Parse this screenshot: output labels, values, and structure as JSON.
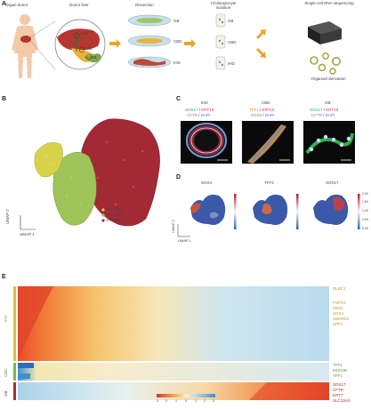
{
  "panels": {
    "a": "A",
    "b": "B",
    "c": "C",
    "d": "D",
    "e": "E"
  },
  "panel_a": {
    "organ_donor": "Organ donor",
    "donor_liver": "Donor liver",
    "dissection": "Dissection",
    "cholangiocyte_isolation": "Cholangiocyte isolation",
    "single_cell": "Single cell RNA sequencing",
    "organoid_derivation": "Organoid derivation",
    "region_ihd": "IHD",
    "region_chd": "CHD",
    "region_gb": "GB",
    "dish_labels": [
      "GB",
      "CBD",
      "IHD"
    ],
    "tube_labels": [
      "GB",
      "CBD",
      "IHD"
    ]
  },
  "panel_b": {
    "xlabel": "UMAP 1",
    "ylabel": "UMAP 2",
    "legend": [
      {
        "label": "PNI IHD",
        "color": "#d8d24a"
      },
      {
        "label": "PNI CBD",
        "color": "#9fc45a"
      },
      {
        "label": "PNI GB",
        "color": "#a32a35"
      }
    ]
  },
  "panel_c": {
    "titles": [
      "IHD",
      "CBD",
      "GB"
    ],
    "markers": [
      {
        "line1a": "SOX17",
        "line1b": "KRT19",
        "line2a": "CFTR",
        "line2b": "DAPI"
      },
      {
        "line1a": "TFF2",
        "line1b": "KRT19",
        "line2a": "SOX9",
        "line2b": "DAPI"
      },
      {
        "line1a": "SOX17",
        "line1b": "KRT19",
        "line2a": "CFTR",
        "line2b": "DAPI"
      }
    ]
  },
  "panel_d": {
    "titles": [
      "SOX4",
      "TFF2",
      "SOX17"
    ],
    "xlabel": "UMAP 1",
    "ylabel": "UMAP 2",
    "scale": [
      "2.00",
      "1.50",
      "1.00",
      "0.50",
      "0.00"
    ]
  },
  "panel_e": {
    "group_labels": [
      "IHD",
      "CBD",
      "GB"
    ],
    "group_colors": [
      "#d8c23a",
      "#7ab84a",
      "#b02a38"
    ],
    "genes_ihd": [
      "DLEC1",
      "FGFR1",
      "HES1",
      "SOX4",
      "ANKRD1",
      "SPP1"
    ],
    "genes_cbd": [
      "TFF2",
      "MUC5B",
      "TFF1"
    ],
    "genes_gb": [
      "SOX17",
      "CFTR",
      "KRT7",
      "SLC13A3"
    ],
    "colorbar_ticks": [
      "3",
      "2",
      "1",
      "0",
      "-1",
      "-2",
      "-3"
    ]
  },
  "colors": {
    "accent_orange": "#e8a628",
    "cluster_red": "#a32a35",
    "cluster_green": "#9fc45a",
    "cluster_yellow": "#d8d24a"
  }
}
